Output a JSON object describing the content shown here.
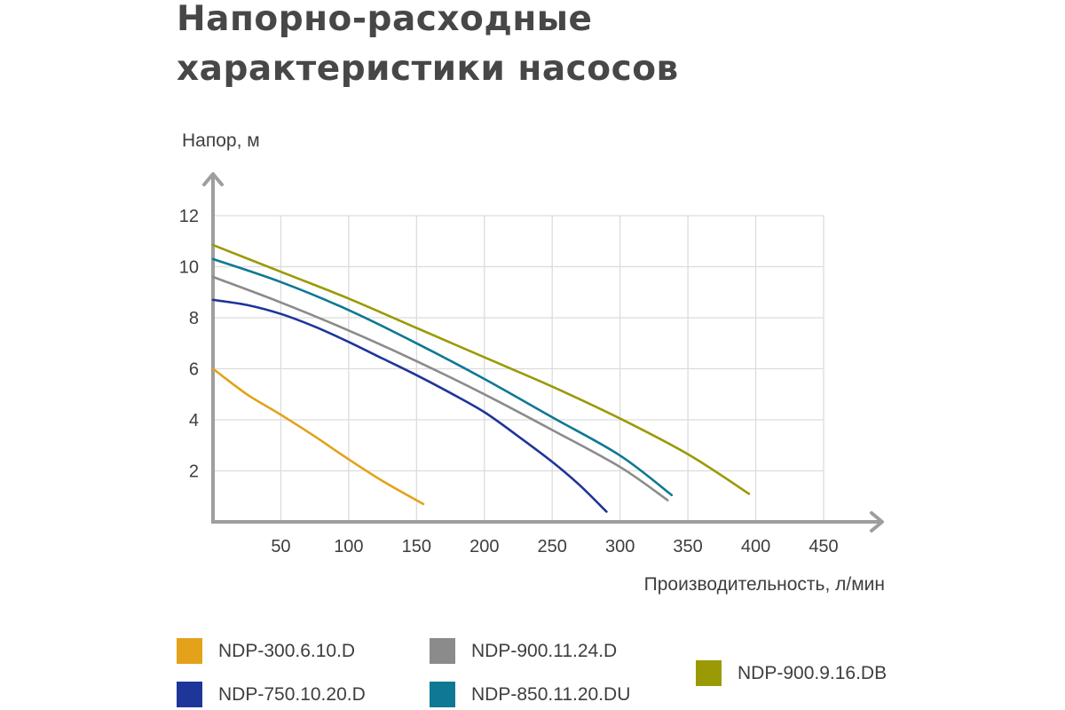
{
  "title": {
    "line1": "Напорно-расходные",
    "line2": "характеристики насосов"
  },
  "chart_data": {
    "type": "line",
    "ylabel": "Напор, м",
    "xlabel": "Производительность, л/мин",
    "xlim": [
      0,
      450
    ],
    "ylim": [
      0,
      12
    ],
    "xticks": [
      50,
      100,
      150,
      200,
      250,
      300,
      350,
      400,
      450
    ],
    "yticks": [
      2,
      4,
      6,
      8,
      10,
      12
    ],
    "grid": true,
    "legend_position": "bottom",
    "series": [
      {
        "name": "NDP-300.6.10.D",
        "color": "#e3a21a",
        "x": [
          0,
          25,
          50,
          75,
          100,
          125,
          155
        ],
        "y": [
          6.0,
          5.0,
          4.2,
          3.35,
          2.45,
          1.6,
          0.7
        ]
      },
      {
        "name": "NDP-750.10.20.D",
        "color": "#1e3599",
        "x": [
          0,
          25,
          50,
          75,
          100,
          125,
          150,
          175,
          200,
          225,
          250,
          270,
          290
        ],
        "y": [
          8.7,
          8.5,
          8.15,
          7.65,
          7.05,
          6.4,
          5.75,
          5.05,
          4.3,
          3.35,
          2.35,
          1.45,
          0.4
        ]
      },
      {
        "name": "NDP-900.11.24.D",
        "color": "#8b8b8b",
        "x": [
          0,
          50,
          100,
          150,
          200,
          250,
          300,
          335
        ],
        "y": [
          9.6,
          8.6,
          7.5,
          6.3,
          5.0,
          3.6,
          2.15,
          0.85
        ]
      },
      {
        "name": "NDP-850.11.20.DU",
        "color": "#0f7894",
        "x": [
          0,
          50,
          100,
          150,
          200,
          250,
          300,
          338
        ],
        "y": [
          10.3,
          9.4,
          8.3,
          7.0,
          5.6,
          4.1,
          2.6,
          1.05
        ]
      },
      {
        "name": "NDP-900.9.16.DB",
        "color": "#9a9a07",
        "x": [
          0,
          50,
          100,
          150,
          200,
          250,
          300,
          350,
          395
        ],
        "y": [
          10.85,
          9.8,
          8.75,
          7.6,
          6.45,
          5.3,
          4.05,
          2.65,
          1.1
        ]
      }
    ]
  }
}
